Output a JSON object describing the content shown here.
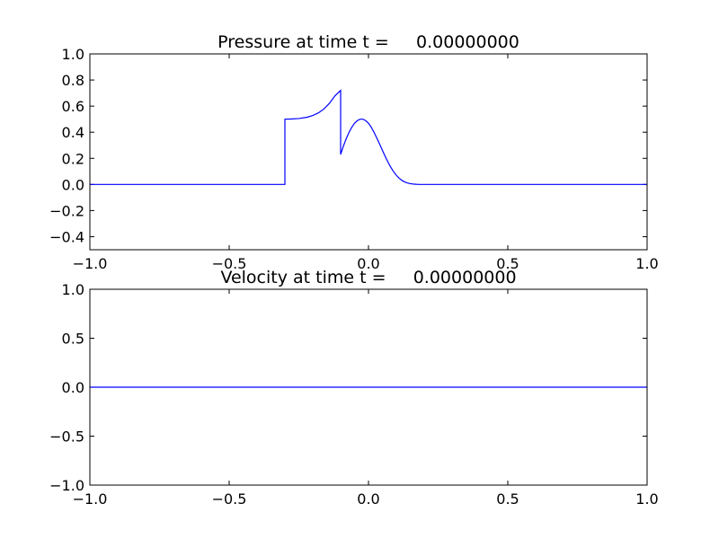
{
  "chart_data": [
    {
      "type": "line",
      "title": "Pressure at time t =     0.00000000",
      "xlabel": "",
      "ylabel": "",
      "xlim": [
        -1.0,
        1.0
      ],
      "ylim": [
        -0.5,
        1.0
      ],
      "xticks": [
        -1.0,
        -0.5,
        0.0,
        0.5,
        1.0
      ],
      "xtick_labels": [
        "−1.0",
        "−0.5",
        "0.0",
        "0.5",
        "1.0"
      ],
      "yticks": [
        -0.4,
        -0.2,
        0.0,
        0.2,
        0.4,
        0.6,
        0.8,
        1.0
      ],
      "ytick_labels": [
        "−0.4",
        "−0.2",
        "0.0",
        "0.2",
        "0.4",
        "0.6",
        "0.8",
        "1.0"
      ],
      "grid": false,
      "series": [
        {
          "color": "#0000ff",
          "x": [
            -1.0,
            -0.3,
            -0.3,
            -0.28,
            -0.25,
            -0.22,
            -0.2,
            -0.18,
            -0.16,
            -0.14,
            -0.12,
            -0.1,
            -0.1,
            -0.09,
            -0.08,
            -0.07,
            -0.06,
            -0.05,
            -0.04,
            -0.03,
            -0.02,
            -0.01,
            0.0,
            0.01,
            0.02,
            0.03,
            0.04,
            0.05,
            0.06,
            0.07,
            0.08,
            0.09,
            0.1,
            0.11,
            0.12,
            0.13,
            0.14,
            0.15,
            0.16,
            0.17,
            0.18,
            0.19,
            0.2,
            0.22,
            0.24,
            0.26,
            0.28,
            0.3,
            1.0
          ],
          "y": [
            0.0,
            0.0,
            0.5,
            0.501,
            0.505,
            0.515,
            0.528,
            0.548,
            0.578,
            0.622,
            0.68,
            0.72,
            0.23,
            0.294,
            0.35,
            0.399,
            0.438,
            0.469,
            0.489,
            0.5,
            0.5,
            0.489,
            0.469,
            0.438,
            0.399,
            0.355,
            0.309,
            0.261,
            0.215,
            0.171,
            0.132,
            0.098,
            0.07,
            0.048,
            0.031,
            0.019,
            0.011,
            0.006,
            0.003,
            0.0014,
            0.0006,
            0.0002,
            0.0001,
            0.0,
            0.0,
            0.0,
            0.0,
            0.0,
            0.0
          ]
        }
      ]
    },
    {
      "type": "line",
      "title": "Velocity at time t =     0.00000000",
      "xlabel": "",
      "ylabel": "",
      "xlim": [
        -1.0,
        1.0
      ],
      "ylim": [
        -1.0,
        1.0
      ],
      "xticks": [
        -1.0,
        -0.5,
        0.0,
        0.5,
        1.0
      ],
      "xtick_labels": [
        "−1.0",
        "−0.5",
        "0.0",
        "0.5",
        "1.0"
      ],
      "yticks": [
        -1.0,
        -0.5,
        0.0,
        0.5,
        1.0
      ],
      "ytick_labels": [
        "−1.0",
        "−0.5",
        "0.0",
        "0.5",
        "1.0"
      ],
      "grid": false,
      "series": [
        {
          "color": "#0000ff",
          "x": [
            -1.0,
            1.0
          ],
          "y": [
            0.0,
            0.0
          ]
        }
      ]
    }
  ]
}
